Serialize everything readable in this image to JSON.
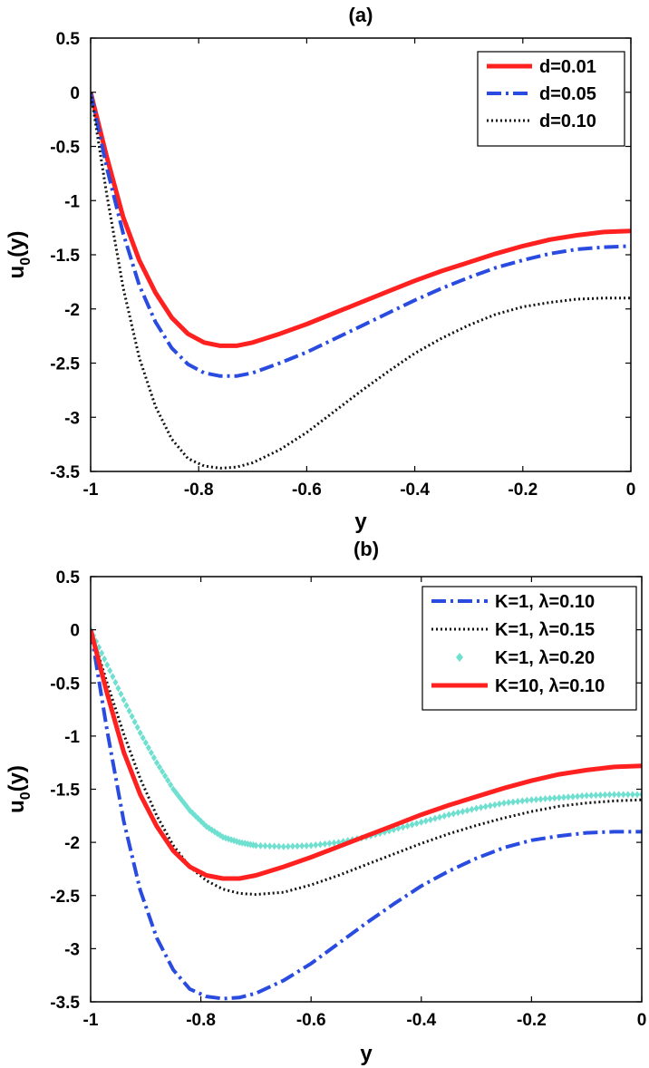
{
  "chart_data": [
    {
      "type": "line",
      "title": "(a)",
      "xlabel": "y",
      "ylabel": "u0(y)",
      "ylabel_main": "u",
      "ylabel_sub": "0",
      "ylabel_rest": "(y)",
      "xlim": [
        -1,
        0
      ],
      "ylim": [
        -3.5,
        0.5
      ],
      "xticks": [
        -1,
        -0.8,
        -0.6,
        -0.4,
        -0.2,
        0
      ],
      "xtick_labels": [
        "-1",
        "-0.8",
        "-0.6",
        "-0.4",
        "-0.2",
        "0"
      ],
      "yticks": [
        0.5,
        0,
        -0.5,
        -1,
        -1.5,
        -2,
        -2.5,
        -3,
        -3.5
      ],
      "ytick_labels": [
        "0.5",
        "0",
        "-0.5",
        "-1",
        "-1.5",
        "-2",
        "-2.5",
        "-3",
        "-3.5"
      ],
      "grid": false,
      "legend_position": "top-right",
      "series": [
        {
          "name": "d=0.01",
          "color": "#ff2020",
          "style": "solid",
          "x": [
            -1,
            -0.97,
            -0.94,
            -0.91,
            -0.88,
            -0.85,
            -0.82,
            -0.79,
            -0.76,
            -0.73,
            -0.7,
            -0.65,
            -0.6,
            -0.55,
            -0.5,
            -0.45,
            -0.4,
            -0.35,
            -0.3,
            -0.25,
            -0.2,
            -0.15,
            -0.1,
            -0.05,
            0
          ],
          "y": [
            0,
            -0.6,
            -1.15,
            -1.55,
            -1.85,
            -2.08,
            -2.23,
            -2.31,
            -2.34,
            -2.34,
            -2.31,
            -2.23,
            -2.14,
            -2.04,
            -1.94,
            -1.84,
            -1.74,
            -1.65,
            -1.57,
            -1.49,
            -1.42,
            -1.36,
            -1.32,
            -1.29,
            -1.28
          ]
        },
        {
          "name": "d=0.05",
          "color": "#2a4be0",
          "style": "dashdot",
          "x": [
            -1,
            -0.97,
            -0.94,
            -0.91,
            -0.88,
            -0.85,
            -0.82,
            -0.79,
            -0.76,
            -0.73,
            -0.7,
            -0.65,
            -0.6,
            -0.55,
            -0.5,
            -0.45,
            -0.4,
            -0.35,
            -0.3,
            -0.25,
            -0.2,
            -0.15,
            -0.1,
            -0.05,
            0
          ],
          "y": [
            0,
            -0.7,
            -1.3,
            -1.78,
            -2.12,
            -2.36,
            -2.51,
            -2.59,
            -2.62,
            -2.62,
            -2.59,
            -2.5,
            -2.4,
            -2.28,
            -2.16,
            -2.04,
            -1.92,
            -1.81,
            -1.71,
            -1.62,
            -1.55,
            -1.49,
            -1.45,
            -1.43,
            -1.42
          ]
        },
        {
          "name": "d=0.10",
          "color": "#111111",
          "style": "dotted",
          "x": [
            -1,
            -0.97,
            -0.94,
            -0.91,
            -0.88,
            -0.85,
            -0.82,
            -0.79,
            -0.76,
            -0.73,
            -0.7,
            -0.65,
            -0.6,
            -0.55,
            -0.5,
            -0.45,
            -0.4,
            -0.35,
            -0.3,
            -0.25,
            -0.2,
            -0.15,
            -0.1,
            -0.05,
            0
          ],
          "y": [
            0,
            -0.95,
            -1.8,
            -2.45,
            -2.9,
            -3.2,
            -3.38,
            -3.45,
            -3.47,
            -3.46,
            -3.42,
            -3.3,
            -3.14,
            -2.95,
            -2.76,
            -2.58,
            -2.41,
            -2.27,
            -2.15,
            -2.05,
            -1.98,
            -1.94,
            -1.91,
            -1.9,
            -1.9
          ]
        }
      ]
    },
    {
      "type": "line",
      "title": "(b)",
      "xlabel": "y",
      "ylabel": "u0(y)",
      "ylabel_main": "u",
      "ylabel_sub": "0",
      "ylabel_rest": "(y)",
      "xlim": [
        -1,
        0
      ],
      "ylim": [
        -3.5,
        0.5
      ],
      "xticks": [
        -1,
        -0.8,
        -0.6,
        -0.4,
        -0.2,
        0
      ],
      "xtick_labels": [
        "-1",
        "-0.8",
        "-0.6",
        "-0.4",
        "-0.2",
        "0"
      ],
      "yticks": [
        0.5,
        0,
        -0.5,
        -1,
        -1.5,
        -2,
        -2.5,
        -3,
        -3.5
      ],
      "ytick_labels": [
        "0.5",
        "0",
        "-0.5",
        "-1",
        "-1.5",
        "-2",
        "-2.5",
        "-3",
        "-3.5"
      ],
      "grid": false,
      "legend_position": "top-right",
      "series": [
        {
          "name": "K=1, λ=0.10",
          "color": "#2a4be0",
          "style": "dashdot",
          "x": [
            -1,
            -0.97,
            -0.94,
            -0.91,
            -0.88,
            -0.85,
            -0.82,
            -0.79,
            -0.76,
            -0.73,
            -0.7,
            -0.65,
            -0.6,
            -0.55,
            -0.5,
            -0.45,
            -0.4,
            -0.35,
            -0.3,
            -0.25,
            -0.2,
            -0.15,
            -0.1,
            -0.05,
            0
          ],
          "y": [
            0,
            -0.95,
            -1.8,
            -2.45,
            -2.9,
            -3.2,
            -3.38,
            -3.45,
            -3.47,
            -3.46,
            -3.42,
            -3.3,
            -3.14,
            -2.95,
            -2.76,
            -2.58,
            -2.41,
            -2.27,
            -2.15,
            -2.05,
            -1.98,
            -1.94,
            -1.91,
            -1.9,
            -1.9
          ]
        },
        {
          "name": "K=1, λ=0.15",
          "color": "#111111",
          "style": "dotted",
          "x": [
            -1,
            -0.97,
            -0.94,
            -0.91,
            -0.88,
            -0.85,
            -0.82,
            -0.79,
            -0.76,
            -0.73,
            -0.7,
            -0.65,
            -0.6,
            -0.55,
            -0.5,
            -0.45,
            -0.4,
            -0.35,
            -0.3,
            -0.25,
            -0.2,
            -0.15,
            -0.1,
            -0.05,
            0
          ],
          "y": [
            0,
            -0.5,
            -0.98,
            -1.4,
            -1.75,
            -2.03,
            -2.23,
            -2.36,
            -2.44,
            -2.48,
            -2.49,
            -2.47,
            -2.4,
            -2.31,
            -2.21,
            -2.11,
            -2.01,
            -1.92,
            -1.84,
            -1.77,
            -1.71,
            -1.66,
            -1.63,
            -1.61,
            -1.6
          ]
        },
        {
          "name": "K=1, λ=0.20",
          "color": "#6fe0d0",
          "style": "markers",
          "x": [
            -1,
            -0.97,
            -0.94,
            -0.91,
            -0.88,
            -0.85,
            -0.82,
            -0.79,
            -0.76,
            -0.73,
            -0.7,
            -0.65,
            -0.6,
            -0.55,
            -0.5,
            -0.45,
            -0.4,
            -0.35,
            -0.3,
            -0.25,
            -0.2,
            -0.15,
            -0.1,
            -0.05,
            0
          ],
          "y": [
            0,
            -0.33,
            -0.66,
            -0.97,
            -1.25,
            -1.5,
            -1.7,
            -1.85,
            -1.95,
            -2.0,
            -2.03,
            -2.04,
            -2.03,
            -2.0,
            -1.95,
            -1.88,
            -1.81,
            -1.74,
            -1.68,
            -1.63,
            -1.6,
            -1.58,
            -1.56,
            -1.55,
            -1.55
          ]
        },
        {
          "name": "K=10, λ=0.10",
          "color": "#ff2020",
          "style": "solid",
          "x": [
            -1,
            -0.97,
            -0.94,
            -0.91,
            -0.88,
            -0.85,
            -0.82,
            -0.79,
            -0.76,
            -0.73,
            -0.7,
            -0.65,
            -0.6,
            -0.55,
            -0.5,
            -0.45,
            -0.4,
            -0.35,
            -0.3,
            -0.25,
            -0.2,
            -0.15,
            -0.1,
            -0.05,
            0
          ],
          "y": [
            0,
            -0.6,
            -1.15,
            -1.55,
            -1.85,
            -2.08,
            -2.23,
            -2.31,
            -2.34,
            -2.34,
            -2.31,
            -2.23,
            -2.14,
            -2.04,
            -1.94,
            -1.84,
            -1.74,
            -1.65,
            -1.57,
            -1.49,
            -1.42,
            -1.36,
            -1.32,
            -1.29,
            -1.28
          ]
        }
      ]
    }
  ]
}
